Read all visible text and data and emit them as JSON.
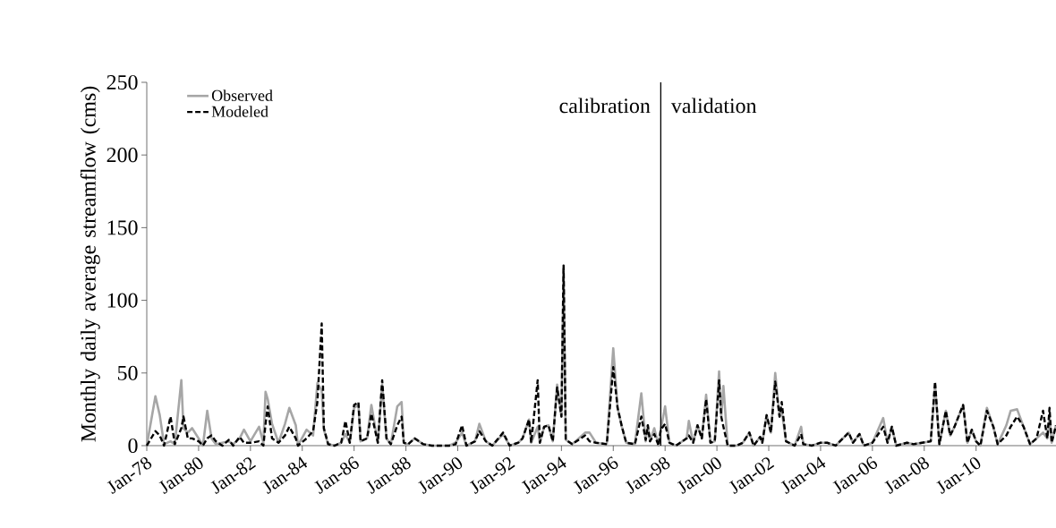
{
  "chart_data": {
    "type": "line",
    "ylabel": "Monthly daily average streamflow (cms)",
    "x": [
      "1978-01",
      "1978-05",
      "1978-07",
      "1978-09",
      "1978-12",
      "1979-02",
      "1979-05",
      "1979-06",
      "1979-08",
      "1979-10",
      "1980-01",
      "1980-03",
      "1980-05",
      "1980-07",
      "1980-09",
      "1980-12",
      "1981-03",
      "1981-05",
      "1981-08",
      "1981-10",
      "1982-01",
      "1982-05",
      "1982-07",
      "1982-08",
      "1982-09",
      "1982-11",
      "1983-02",
      "1983-05",
      "1983-07",
      "1983-10",
      "1983-11",
      "1984-03",
      "1984-06",
      "1984-08",
      "1984-10",
      "1984-11",
      "1985-01",
      "1985-04",
      "1985-07",
      "1985-09",
      "1985-11",
      "1986-01",
      "1986-03",
      "1986-04",
      "1986-07",
      "1986-09",
      "1986-12",
      "1987-02",
      "1987-04",
      "1987-06",
      "1987-09",
      "1987-11",
      "1987-12",
      "1988-02",
      "1988-05",
      "1988-09",
      "1989-01",
      "1989-09",
      "1989-12",
      "1990-03",
      "1990-05",
      "1990-09",
      "1990-11",
      "1991-02",
      "1991-05",
      "1991-10",
      "1992-01",
      "1992-05",
      "1992-07",
      "1992-10",
      "1992-11",
      "1993-02",
      "1993-03",
      "1993-05",
      "1993-07",
      "1993-09",
      "1993-11",
      "1994-01",
      "1994-02",
      "1994-03",
      "1994-06",
      "1994-12",
      "1995-02",
      "1995-05",
      "1995-10",
      "1996-01",
      "1996-03",
      "1996-05",
      "1996-07",
      "1996-11",
      "1997-02",
      "1997-04",
      "1997-05",
      "1997-06",
      "1997-08",
      "1997-10",
      "1997-11",
      "1998-01",
      "1998-03",
      "1998-06",
      "1998-11",
      "1998-12",
      "1999-02",
      "1999-04",
      "1999-06",
      "1999-08",
      "1999-10",
      "1999-12",
      "2000-02",
      "2000-03",
      "2000-04",
      "2000-06",
      "2000-10",
      "2001-01",
      "2001-04",
      "2001-06",
      "2001-09",
      "2001-10",
      "2001-12",
      "2002-02",
      "2002-04",
      "2002-06",
      "2002-07",
      "2002-09",
      "2003-01",
      "2003-04",
      "2003-05",
      "2003-09",
      "2004-01",
      "2004-04",
      "2004-08",
      "2005-02",
      "2005-04",
      "2005-07",
      "2005-09",
      "2006-01",
      "2006-06",
      "2006-08",
      "2006-10",
      "2006-12",
      "2007-05",
      "2007-08",
      "2007-12",
      "2008-04",
      "2008-06",
      "2008-08",
      "2008-11",
      "2009-01",
      "2009-03",
      "2009-07",
      "2009-09",
      "2009-11",
      "2010-01",
      "2010-03",
      "2010-06",
      "2010-09",
      "2010-11",
      "2011-03",
      "2011-05",
      "2011-08",
      "2011-11",
      "2012-02",
      "2012-05",
      "2012-08",
      "2012-10",
      "2012-11",
      "2012-12",
      "2013-02"
    ],
    "series": [
      {
        "name": "Observed",
        "color": "#a6a6a6",
        "line_style": "solid",
        "values": [
          0,
          34,
          21,
          1,
          3,
          1,
          45,
          12,
          9,
          12,
          5,
          0,
          24,
          5,
          1,
          2,
          3,
          1,
          5,
          11,
          3,
          13,
          2,
          37,
          32,
          15,
          2,
          15,
          26,
          14,
          0,
          11,
          7,
          43,
          38,
          11,
          1,
          0,
          2,
          8,
          2,
          26,
          28,
          3,
          5,
          28,
          2,
          42,
          5,
          1,
          27,
          30,
          2,
          1,
          5,
          1,
          0,
          0,
          2,
          9,
          0,
          3,
          15,
          3,
          0,
          8,
          0,
          2,
          5,
          18,
          2,
          13,
          2,
          13,
          14,
          3,
          42,
          20,
          122,
          4,
          1,
          9,
          9,
          2,
          1,
          67,
          26,
          13,
          2,
          1,
          36,
          3,
          14,
          3,
          12,
          0,
          11,
          27,
          2,
          0,
          5,
          17,
          2,
          14,
          5,
          35,
          2,
          3,
          51,
          20,
          41,
          0,
          0,
          2,
          9,
          0,
          6,
          2,
          21,
          9,
          50,
          20,
          24,
          3,
          0,
          13,
          1,
          0,
          2,
          2,
          0,
          9,
          2,
          8,
          0,
          2,
          19,
          2,
          13,
          0,
          2,
          1,
          2,
          3,
          42,
          1,
          24,
          7,
          13,
          28,
          2,
          11,
          3,
          0,
          26,
          13,
          1,
          14,
          24,
          25,
          13,
          1,
          5,
          9,
          5,
          20,
          2,
          14
        ]
      },
      {
        "name": "Modeled",
        "color": "#000000",
        "line_style": "dashed",
        "values": [
          0,
          10,
          7,
          0,
          20,
          1,
          12,
          20,
          5,
          5,
          3,
          0,
          5,
          7,
          3,
          0,
          4,
          0,
          6,
          2,
          2,
          3,
          0,
          15,
          27,
          5,
          2,
          7,
          13,
          5,
          0,
          5,
          10,
          30,
          84,
          12,
          1,
          0,
          2,
          17,
          2,
          28,
          30,
          3,
          5,
          22,
          2,
          45,
          5,
          1,
          14,
          20,
          2,
          1,
          5,
          1,
          0,
          0,
          1,
          14,
          0,
          3,
          10,
          3,
          0,
          9,
          0,
          2,
          5,
          18,
          2,
          45,
          2,
          13,
          14,
          3,
          40,
          20,
          124,
          4,
          1,
          7,
          3,
          2,
          1,
          54,
          26,
          13,
          2,
          1,
          20,
          4,
          14,
          3,
          8,
          0,
          11,
          15,
          2,
          0,
          5,
          7,
          2,
          14,
          5,
          32,
          2,
          3,
          45,
          20,
          13,
          0,
          0,
          2,
          9,
          0,
          6,
          2,
          21,
          9,
          44,
          20,
          30,
          3,
          0,
          8,
          1,
          0,
          2,
          2,
          0,
          9,
          2,
          8,
          0,
          2,
          13,
          2,
          13,
          0,
          2,
          1,
          2,
          3,
          44,
          1,
          24,
          7,
          13,
          28,
          2,
          11,
          3,
          0,
          24,
          13,
          1,
          7,
          13,
          20,
          13,
          1,
          5,
          24,
          5,
          26,
          2,
          14
        ]
      }
    ],
    "xlim": [
      "1978-01",
      "2013-02"
    ],
    "xticks": [
      {
        "value": "1978-01",
        "label": "Jan-78"
      },
      {
        "value": "1980-01",
        "label": "Jan-80"
      },
      {
        "value": "1982-01",
        "label": "Jan-82"
      },
      {
        "value": "1984-01",
        "label": "Jan-84"
      },
      {
        "value": "1986-01",
        "label": "Jan-86"
      },
      {
        "value": "1988-01",
        "label": "Jan-88"
      },
      {
        "value": "1990-01",
        "label": "Jan-90"
      },
      {
        "value": "1992-01",
        "label": "Jan-92"
      },
      {
        "value": "1994-01",
        "label": "Jan-94"
      },
      {
        "value": "1996-01",
        "label": "Jan-96"
      },
      {
        "value": "1998-01",
        "label": "Jan-98"
      },
      {
        "value": "2000-01",
        "label": "Jan-00"
      },
      {
        "value": "2002-01",
        "label": "Jan-02"
      },
      {
        "value": "2004-01",
        "label": "Jan-04"
      },
      {
        "value": "2006-01",
        "label": "Jan-06"
      },
      {
        "value": "2008-01",
        "label": "Jan-08"
      },
      {
        "value": "2010-01",
        "label": "Jan-10"
      }
    ],
    "ylim": [
      0,
      250
    ],
    "yticks": [
      0,
      50,
      100,
      150,
      200,
      250
    ],
    "ref_lines": [
      {
        "axis": "x",
        "value": "1997-11",
        "color": "#000000"
      }
    ],
    "annotations": [
      "calibration",
      "validation"
    ],
    "legend": "top left"
  }
}
